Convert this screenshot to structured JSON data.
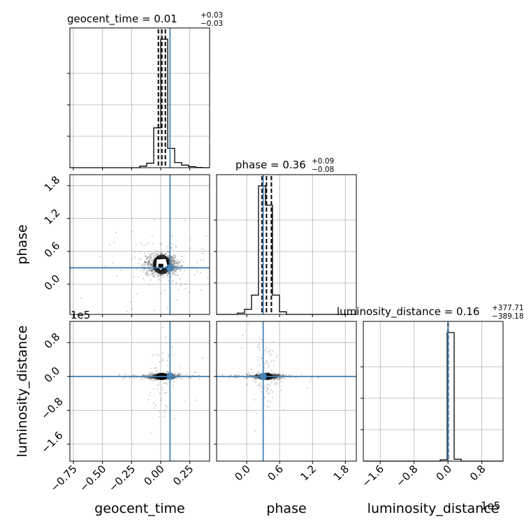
{
  "chart_data": {
    "type": "corner",
    "parameters": [
      "geocent_time",
      "phase",
      "luminosity_distance"
    ],
    "truth_color": "#4682b4",
    "truths": {
      "geocent_time": 0.08,
      "phase": 0.3,
      "luminosity_distance": 0
    },
    "titles": [
      {
        "param": "geocent_time",
        "text": "geocent_time = 0.01",
        "upper": "+0.03",
        "lower": "−0.03"
      },
      {
        "param": "phase",
        "text": "phase = 0.36",
        "upper": "+0.09",
        "lower": "−0.08"
      },
      {
        "param": "luminosity_distance",
        "text": "luminosity_distance = 0.16",
        "upper": "+377.71",
        "lower": "−389.18"
      }
    ],
    "axis_labels": {
      "geocent_time": "geocent_time",
      "phase": "phase",
      "luminosity_distance": "luminosity_distance"
    },
    "offset_text": "1e5",
    "ranges": {
      "geocent_time": [
        -0.78,
        0.42
      ],
      "phase": [
        -0.55,
        2.0
      ],
      "luminosity_distance": [
        -2.0,
        1.3
      ]
    },
    "ticks": {
      "geocent_time": {
        "values": [
          -0.75,
          -0.5,
          -0.25,
          0.0,
          0.25
        ],
        "labels": [
          "−0.75",
          "−0.50",
          "−0.25",
          "0.00",
          "0.25"
        ]
      },
      "phase": {
        "values": [
          0.0,
          0.6,
          1.2,
          1.8
        ],
        "labels": [
          "0.0",
          "0.6",
          "1.2",
          "1.8"
        ]
      },
      "luminosity_distance": {
        "values": [
          -1.6,
          -0.8,
          0.0,
          0.8
        ],
        "labels": [
          "−1.6",
          "−0.8",
          "0.0",
          "0.8"
        ]
      }
    },
    "quantiles": {
      "geocent_time": [
        -0.02,
        0.01,
        0.04
      ],
      "phase": [
        0.28,
        0.36,
        0.45
      ],
      "luminosity_distance": [
        -0.004,
        0.0,
        0.004
      ]
    },
    "histograms": {
      "geocent_time": {
        "edges": [
          -0.78,
          -0.72,
          -0.66,
          -0.6,
          -0.54,
          -0.48,
          -0.42,
          -0.36,
          -0.3,
          -0.24,
          -0.18,
          -0.12,
          -0.06,
          0.0,
          0.06,
          0.12,
          0.18,
          0.24,
          0.3,
          0.36,
          0.42
        ],
        "counts": [
          0,
          0,
          0,
          0,
          0,
          0,
          0,
          0,
          0,
          0,
          0.012,
          0.035,
          0.31,
          1.0,
          0.15,
          0.04,
          0.02,
          0.008,
          0.002,
          0
        ]
      },
      "phase": {
        "edges": [
          -0.55,
          -0.4225,
          -0.295,
          -0.1675,
          -0.04,
          0.0875,
          0.215,
          0.3425,
          0.47,
          0.5975,
          0.725,
          0.8525,
          0.98,
          1.1075,
          1.235,
          1.3625,
          1.49,
          1.6175,
          1.745,
          1.8725,
          2.0
        ],
        "counts": [
          0,
          0,
          0,
          0.01,
          0.04,
          0.15,
          1.0,
          0.85,
          0.15,
          0.02,
          0,
          0,
          0,
          0,
          0,
          0,
          0,
          0,
          0,
          0
        ]
      },
      "luminosity_distance": {
        "edges": [
          -2.0,
          -1.835,
          -1.67,
          -1.505,
          -1.34,
          -1.175,
          -1.01,
          -0.845,
          -0.68,
          -0.515,
          -0.35,
          -0.185,
          -0.02,
          0.145,
          0.31,
          0.475,
          0.64,
          0.805,
          0.97,
          1.135,
          1.3
        ],
        "counts": [
          0,
          0,
          0,
          0,
          0,
          0,
          0,
          0,
          0,
          0,
          0,
          0.01,
          1.0,
          0.015,
          0,
          0,
          0,
          0,
          0,
          0
        ]
      }
    },
    "density_centers": {
      "phase_vs_geocent_time": {
        "x": 0.01,
        "y": 0.36,
        "sx": 0.07,
        "sy": 0.1
      },
      "luminosity_distance_vs_geocent_time": {
        "x": 0.01,
        "y": 0.0,
        "sx": 0.06,
        "sy": 0.02
      },
      "luminosity_distance_vs_phase": {
        "x": 0.36,
        "y": 0.0,
        "sx": 0.12,
        "sy": 0.02
      }
    }
  }
}
